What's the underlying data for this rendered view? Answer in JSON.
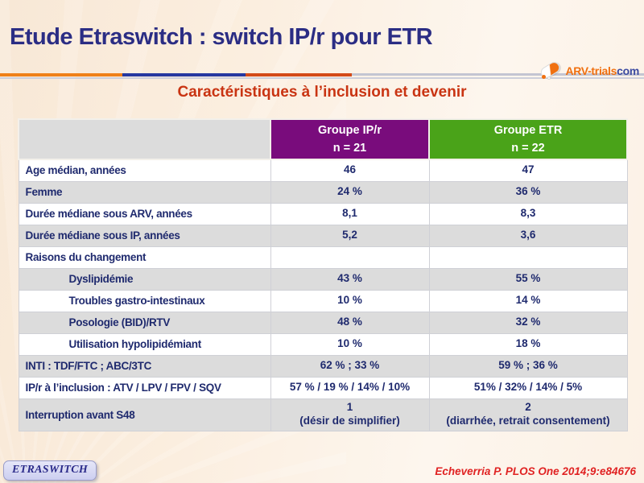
{
  "title": "Etude Etraswitch : switch IP/r pour ETR",
  "subtitle": "Caractéristiques à l’inclusion et devenir",
  "logo": {
    "text_main": "ARV-trials",
    "text_suffix": "com",
    "icon": "capsule-pill-icon",
    "color_main": "#f07010",
    "color_suffix": "#3a4aa0"
  },
  "divider_colors": {
    "orange": "#ef8018",
    "blue": "#2638a0",
    "red": "#d34a18",
    "silver": "#c3c5d2"
  },
  "table": {
    "columns": [
      {
        "label_line1": "Groupe IP/r",
        "label_line2": "n = 21",
        "color": "#790c7c"
      },
      {
        "label_line1": "Groupe ETR",
        "label_line2": "n = 22",
        "color": "#4aa319"
      }
    ],
    "rows": [
      {
        "label": "Age médian, années",
        "ipr": "46",
        "etr": "47",
        "indent": false
      },
      {
        "label": "Femme",
        "ipr": "24 %",
        "etr": "36 %",
        "indent": false
      },
      {
        "label": "Durée médiane sous ARV, années",
        "ipr": "8,1",
        "etr": "8,3",
        "indent": false
      },
      {
        "label": "Durée médiane sous IP, années",
        "ipr": "5,2",
        "etr": "3,6",
        "indent": false
      },
      {
        "label": "Raisons du changement",
        "ipr": "",
        "etr": "",
        "indent": false
      },
      {
        "label": "Dyslipidémie",
        "ipr": "43 %",
        "etr": "55 %",
        "indent": true
      },
      {
        "label": "Troubles gastro-intestinaux",
        "ipr": "10 %",
        "etr": "14 %",
        "indent": true
      },
      {
        "label": "Posologie (BID)/RTV",
        "ipr": "48 %",
        "etr": "32 %",
        "indent": true
      },
      {
        "label": "Utilisation hypolipidémiant",
        "ipr": "10 %",
        "etr": "18 %",
        "indent": true
      },
      {
        "label": "INTI : TDF/FTC ; ABC/3TC",
        "ipr": "62 % ; 33 %",
        "etr": "59 % ; 36 %",
        "indent": false
      },
      {
        "label": "IP/r à l’inclusion : ATV / LPV / FPV / SQV",
        "ipr": "57 % / 19 % / 14% / 10%",
        "etr": "51% / 32% / 14% / 5%",
        "indent": false
      },
      {
        "label": "Interruption avant S48",
        "ipr": "1\n(désir de simplifier)",
        "etr": "2\n(diarrhée, retrait consentement)",
        "indent": false,
        "tall": true
      }
    ]
  },
  "footer": {
    "badge": "ETRASWITCH",
    "citation": "Echeverria P. PLOS One 2014;9:e84676"
  }
}
